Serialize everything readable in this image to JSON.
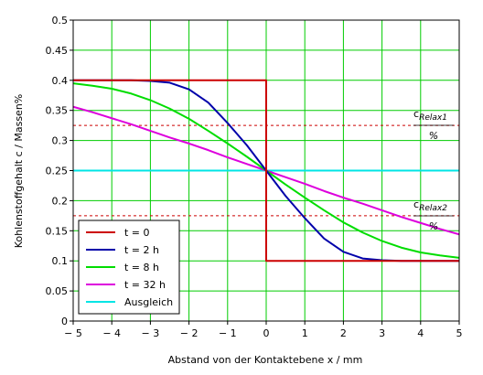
{
  "chart_data": {
    "type": "line",
    "xlabel": "Abstand von der Kontaktebene x / mm",
    "ylabel": "Kohlenstoffgehalt c / Massen%",
    "xlim": [
      -5,
      5
    ],
    "ylim": [
      0,
      0.5
    ],
    "x_ticks": [
      -5,
      -4,
      -3,
      -2,
      -1,
      0,
      1,
      2,
      3,
      4,
      5
    ],
    "x_tick_labels": [
      "− 5",
      "− 4",
      "− 3",
      "− 2",
      "− 1",
      "0",
      "1",
      "2",
      "3",
      "4",
      "5"
    ],
    "y_ticks": [
      0,
      0.05,
      0.1,
      0.15,
      0.2,
      0.25,
      0.3,
      0.35,
      0.4,
      0.45,
      0.5
    ],
    "y_tick_labels": [
      "0",
      "0.05",
      "0.1",
      "0.15",
      "0.2",
      "0.25",
      "0.3",
      "0.35",
      "0.4",
      "0.45",
      "0.5"
    ],
    "grid": true,
    "grid_color": "#00cc00",
    "legend_position": "bottom-left",
    "x": [
      -5,
      -4.5,
      -4,
      -3.5,
      -3,
      -2.5,
      -2,
      -1.5,
      -1,
      -0.5,
      0,
      0.5,
      1,
      1.5,
      2,
      2.5,
      3,
      3.5,
      4,
      4.5,
      5
    ],
    "series": [
      {
        "name": "t = 0",
        "color": "#cc0000",
        "step": true,
        "x": [
          -5,
          0,
          0,
          5
        ],
        "values": [
          0.4,
          0.4,
          0.1,
          0.1
        ]
      },
      {
        "name": "t = 2 h",
        "color": "#0000aa",
        "values": [
          0.4,
          0.4,
          0.4,
          0.4,
          0.399,
          0.396,
          0.385,
          0.363,
          0.329,
          0.292,
          0.25,
          0.208,
          0.171,
          0.137,
          0.115,
          0.104,
          0.101,
          0.1,
          0.1,
          0.1,
          0.1
        ]
      },
      {
        "name": "t = 8 h",
        "color": "#00dd00",
        "values": [
          0.395,
          0.391,
          0.386,
          0.378,
          0.367,
          0.353,
          0.336,
          0.316,
          0.295,
          0.273,
          0.25,
          0.227,
          0.205,
          0.184,
          0.164,
          0.147,
          0.133,
          0.122,
          0.114,
          0.109,
          0.105
        ]
      },
      {
        "name": "t = 32 h",
        "color": "#dd00dd",
        "values": [
          0.356,
          0.347,
          0.337,
          0.327,
          0.316,
          0.305,
          0.295,
          0.284,
          0.272,
          0.261,
          0.25,
          0.239,
          0.228,
          0.216,
          0.205,
          0.195,
          0.184,
          0.173,
          0.163,
          0.153,
          0.144
        ]
      },
      {
        "name": "Ausgleich",
        "color": "#00e5e5",
        "x": [
          -5,
          5
        ],
        "values": [
          0.25,
          0.25
        ]
      }
    ],
    "reference_lines": [
      {
        "name": "cRelax1",
        "y": 0.325,
        "color": "#cc0000",
        "style": "dashed",
        "label_main": "c",
        "label_sub": "Relax1",
        "label_unit": "%"
      },
      {
        "name": "cRelax2",
        "y": 0.175,
        "color": "#cc0000",
        "style": "dashed",
        "label_main": "c",
        "label_sub": "Relax2",
        "label_unit": "%"
      }
    ]
  }
}
